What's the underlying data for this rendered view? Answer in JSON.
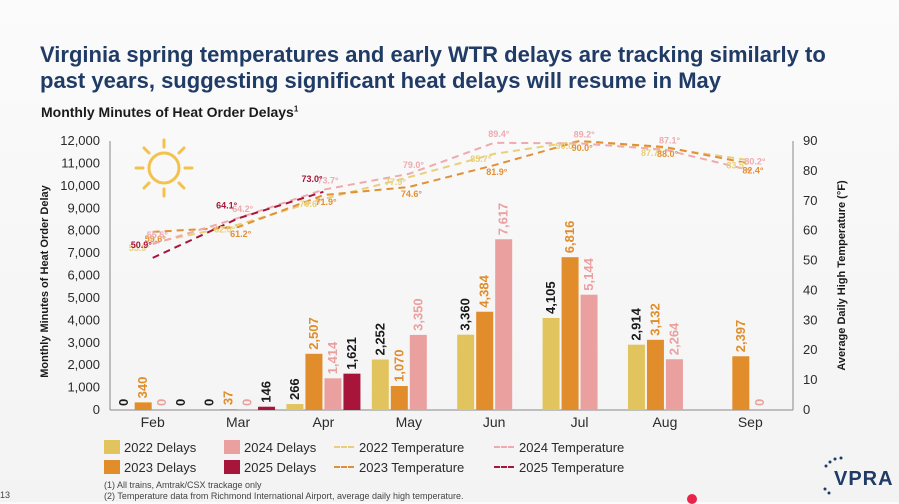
{
  "headline": "Virginia spring temperatures and early WTR delays are tracking similarly to past years, suggesting significant heat delays will resume in May",
  "subtitle": "Monthly Minutes of Heat Order Delays",
  "subtitle_sup": "1",
  "page_number": "13",
  "logo_text": "VPRA",
  "footnotes": [
    "(1)  All trains, Amtrak/CSX trackage only",
    "(2)  Temperature data from Richmond International Airport, average daily high temperature."
  ],
  "chart_data": {
    "type": "bar",
    "title": "Monthly Minutes of Heat Order Delays",
    "ylabel": "Monthly Minutes of Heat Order Delay",
    "y2label": "Average Daily High Temperature (°F)",
    "ylim": [
      0,
      12000
    ],
    "y2lim": [
      0,
      90
    ],
    "yticks": [
      "0",
      "1,000",
      "2,000",
      "3,000",
      "4,000",
      "5,000",
      "6,000",
      "7,000",
      "8,000",
      "9,000",
      "10,000",
      "11,000",
      "12,000"
    ],
    "y2ticks": [
      "0",
      "10",
      "20",
      "30",
      "40",
      "50",
      "60",
      "70",
      "80",
      "90"
    ],
    "categories": [
      "Feb",
      "Mar",
      "Apr",
      "May",
      "Jun",
      "Jul",
      "Aug",
      "Sep"
    ],
    "bar_series": [
      {
        "name": "2022 Delays",
        "color": "#e2c45e",
        "values": [
          0,
          0,
          266,
          2252,
          3360,
          4105,
          2914,
          null
        ],
        "labels": [
          "0",
          "0",
          "266",
          "2,252",
          "3,360",
          "4,105",
          "2,914",
          ""
        ]
      },
      {
        "name": "2023 Delays",
        "color": "#e18d2b",
        "values": [
          340,
          37,
          2507,
          1070,
          4384,
          6816,
          3132,
          2397
        ],
        "labels": [
          "340",
          "37",
          "2,507",
          "1,070",
          "4,384",
          "6,816",
          "3,132",
          "2,397"
        ]
      },
      {
        "name": "2024 Delays",
        "color": "#eba0a0",
        "values": [
          0,
          0,
          1414,
          3350,
          7617,
          5144,
          2264,
          0
        ],
        "labels": [
          "0",
          "0",
          "1,414",
          "3,350",
          "7,617",
          "5,144",
          "2,264",
          "0"
        ]
      },
      {
        "name": "2025 Delays",
        "color": "#a8153a",
        "values": [
          0,
          146,
          1621,
          null,
          null,
          null,
          null,
          null
        ],
        "labels": [
          "0",
          "146",
          "1,621",
          "",
          "",
          "",
          "",
          ""
        ]
      }
    ],
    "line_series": [
      {
        "name": "2022 Temperature",
        "color": "#e8cf78",
        "values": [
          55.9,
          62.0,
          70.6,
          77.9,
          85.7,
          90.0,
          87.7,
          83.5
        ],
        "labels": [
          "55.9°",
          "62.0°",
          "70.6°",
          "77.9°",
          "85.7°",
          "90.0°",
          "87.7°",
          "83.5°"
        ]
      },
      {
        "name": "2023 Temperature",
        "color": "#e19035",
        "values": [
          59.6,
          61.2,
          71.9,
          74.6,
          81.9,
          90.0,
          88.0,
          82.4
        ],
        "labels": [
          "59.6°",
          "61.2°",
          "71.9°",
          "74.6°",
          "81.9°",
          "90.0°",
          "88.0°",
          "82.4°"
        ]
      },
      {
        "name": "2024 Temperature",
        "color": "#eeaab0",
        "values": [
          55.5,
          64.2,
          73.7,
          79.0,
          89.4,
          89.2,
          87.1,
          80.2
        ],
        "labels": [
          "55.5°",
          "64.2°",
          "73.7°",
          "79.0°",
          "89.4°",
          "89.2°",
          "87.1°",
          "80.2°"
        ]
      },
      {
        "name": "2025 Temperature",
        "color": "#a8153a",
        "values": [
          50.9,
          64.1,
          73.0,
          null,
          null,
          null,
          null,
          null
        ],
        "labels": [
          "50.9°",
          "64.1°",
          "73.0°",
          "",
          "",
          "",
          "",
          ""
        ]
      }
    ],
    "legend": [
      {
        "label": "2022 Delays",
        "kind": "bar",
        "color": "#e2c45e"
      },
      {
        "label": "2024 Delays",
        "kind": "bar",
        "color": "#eba0a0"
      },
      {
        "label": "2022 Temperature",
        "kind": "line",
        "color": "#e8cf78"
      },
      {
        "label": "2024 Temperature",
        "kind": "line",
        "color": "#eeaab0"
      },
      {
        "label": "2023 Delays",
        "kind": "bar",
        "color": "#e18d2b"
      },
      {
        "label": "2025 Delays",
        "kind": "bar",
        "color": "#a8153a"
      },
      {
        "label": "2023 Temperature",
        "kind": "line",
        "color": "#e19035"
      },
      {
        "label": "2025 Temperature",
        "kind": "line",
        "color": "#a8153a"
      }
    ],
    "legend_placement": "bottom",
    "grid": false
  }
}
